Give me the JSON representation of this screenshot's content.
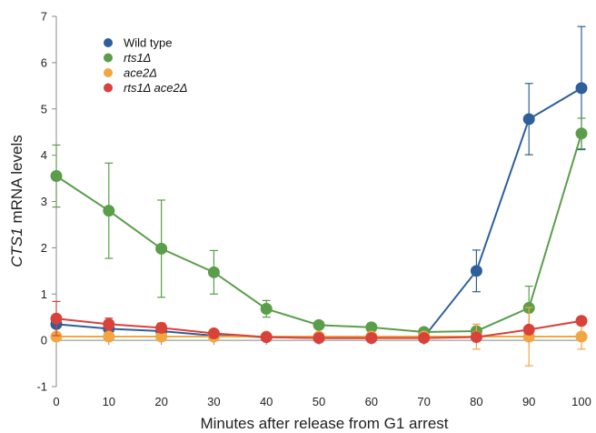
{
  "chart_data": {
    "type": "line",
    "title": "",
    "xlabel": "Minutes after release from G1 arrest",
    "ylabel_italic": "CTS1",
    "ylabel_rest": " mRNA levels",
    "x": [
      0,
      10,
      20,
      30,
      40,
      50,
      60,
      70,
      80,
      90,
      100
    ],
    "x_ticks": [
      "0",
      "10",
      "20",
      "30",
      "40",
      "50",
      "60",
      "70",
      "80",
      "90",
      "100"
    ],
    "y_ticks": [
      "-1",
      "0",
      "1",
      "2",
      "3",
      "4",
      "5",
      "6",
      "7"
    ],
    "xlim": [
      0,
      100
    ],
    "ylim": [
      -1,
      7
    ],
    "grid": false,
    "legend_position": "top-left",
    "series": [
      {
        "name": "Wild type",
        "italic": false,
        "color": "#2e5f9a",
        "values": [
          0.35,
          0.25,
          0.2,
          0.1,
          0.07,
          0.05,
          0.05,
          0.07,
          1.5,
          4.78,
          5.45
        ],
        "errors": [
          0.08,
          0.06,
          0.06,
          0.04,
          0.03,
          0.03,
          0.03,
          0.03,
          0.45,
          0.77,
          1.33
        ]
      },
      {
        "name": "rts1Δ",
        "italic": true,
        "color": "#5a9e4b",
        "values": [
          3.55,
          2.8,
          1.98,
          1.47,
          0.68,
          0.33,
          0.28,
          0.18,
          0.2,
          0.7,
          4.47
        ],
        "errors": [
          0.67,
          1.03,
          1.05,
          0.47,
          0.18,
          0.05,
          0.05,
          0.05,
          0.08,
          0.47,
          0.33
        ]
      },
      {
        "name": "ace2Δ",
        "italic": true,
        "color": "#f2a641",
        "values": [
          0.08,
          0.08,
          0.08,
          0.08,
          0.08,
          0.08,
          0.08,
          0.08,
          0.08,
          0.08,
          0.08
        ],
        "errors": [
          0.05,
          0.03,
          0.03,
          0.03,
          0.03,
          0.03,
          0.03,
          0.05,
          0.27,
          0.63,
          0.27
        ]
      },
      {
        "name": "rts1Δ ace2Δ",
        "italic": true,
        "color": "#d9423b",
        "values": [
          0.47,
          0.35,
          0.27,
          0.15,
          0.07,
          0.05,
          0.05,
          0.05,
          0.07,
          0.23,
          0.42
        ],
        "errors": [
          0.37,
          0.13,
          0.1,
          0.05,
          0.03,
          0.03,
          0.03,
          0.03,
          0.05,
          0.08,
          0.08
        ]
      }
    ]
  }
}
